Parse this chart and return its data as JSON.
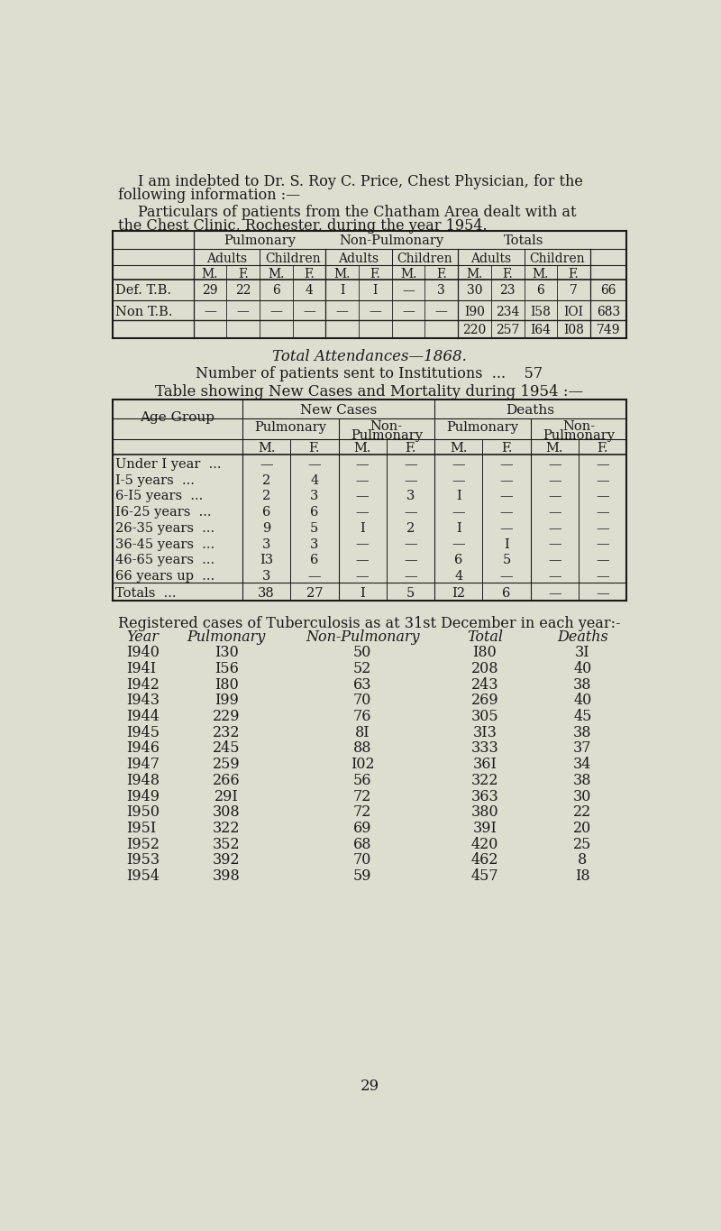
{
  "bg_color": "#deded0",
  "text_color": "#1a1a1a",
  "page_number": "29",
  "intro_text_line1": "I am indebted to Dr. S. Roy C. Price, Chest Physician, for the",
  "intro_text_line2": "following information :—",
  "particulars_line1": "Particulars of patients from the Chatham Area dealt with at",
  "particulars_line2": "the Chest Clinic, Rochester, during the year 1954.",
  "total_attendances": "Total Attendances—1868.",
  "institutions_text": "Number of patients sent to Institutions  ...    57",
  "table2_title_prefix": "Table ",
  "table2_title_smallcaps": "showing New Cases and Mortality during 1954 :—",
  "table3_title": "Registered cases of Tuberculosis as at 31st December in each year:-",
  "table1": {
    "rows": [
      {
        "label": "Def. T.B.",
        "values": [
          "29",
          "22",
          "6",
          "4",
          "I",
          "I",
          "—",
          "3",
          "30",
          "23",
          "6",
          "7",
          "66"
        ]
      },
      {
        "label": "Non T.B.",
        "values": [
          "—",
          "—",
          "—",
          "—",
          "—",
          "—",
          "—",
          "—",
          "I90",
          "234",
          "I58",
          "IOI",
          "683"
        ]
      }
    ],
    "totals_row": [
      "",
      "",
      "",
      "",
      "",
      "",
      "",
      "",
      "220",
      "257",
      "I64",
      "I08",
      "749"
    ]
  },
  "table2": {
    "age_groups": [
      "Under I year  ...",
      "I-5 years  ...",
      "6-I5 years  ...",
      "I6-25 years  ...",
      "26-35 years  ...",
      "36-45 years  ...",
      "46-65 years  ...",
      "66 years up  ..."
    ],
    "new_pulm_m": [
      "—",
      "2",
      "2",
      "6",
      "9",
      "3",
      "I3",
      "3"
    ],
    "new_pulm_f": [
      "—",
      "4",
      "3",
      "6",
      "5",
      "3",
      "6",
      "—"
    ],
    "new_nonpulm_m": [
      "—",
      "—",
      "—",
      "—",
      "I",
      "—",
      "—",
      "—"
    ],
    "new_nonpulm_f": [
      "—",
      "—",
      "3",
      "—",
      "2",
      "—",
      "—",
      "—"
    ],
    "deaths_pulm_m": [
      "—",
      "—",
      "I",
      "—",
      "I",
      "—",
      "6",
      "4"
    ],
    "deaths_pulm_f": [
      "—",
      "—",
      "—",
      "—",
      "—",
      "I",
      "5",
      "—"
    ],
    "deaths_nonpulm_m": [
      "—",
      "—",
      "—",
      "—",
      "—",
      "—",
      "—",
      "—"
    ],
    "deaths_nonpulm_f": [
      "—",
      "—",
      "—",
      "—",
      "—",
      "—",
      "—",
      "—"
    ],
    "totals": [
      "38",
      "27",
      "I",
      "5",
      "I2",
      "6",
      "—",
      "—"
    ]
  },
  "table3": {
    "years": [
      "I940",
      "I94I",
      "I942",
      "I943",
      "I944",
      "I945",
      "I946",
      "I947",
      "I948",
      "I949",
      "I950",
      "I95I",
      "I952",
      "I953",
      "I954"
    ],
    "pulmonary": [
      "I30",
      "I56",
      "I80",
      "I99",
      "229",
      "232",
      "245",
      "259",
      "266",
      "29I",
      "308",
      "322",
      "352",
      "392",
      "398"
    ],
    "non_pulmonary": [
      "50",
      "52",
      "63",
      "70",
      "76",
      "8I",
      "88",
      "I02",
      "56",
      "72",
      "72",
      "69",
      "68",
      "70",
      "59"
    ],
    "total": [
      "I80",
      "208",
      "243",
      "269",
      "305",
      "3I3",
      "333",
      "36I",
      "322",
      "363",
      "380",
      "39I",
      "420",
      "462",
      "457"
    ],
    "deaths": [
      "3I",
      "40",
      "38",
      "40",
      "45",
      "38",
      "37",
      "34",
      "38",
      "30",
      "22",
      "20",
      "25",
      "8",
      "I8"
    ]
  }
}
